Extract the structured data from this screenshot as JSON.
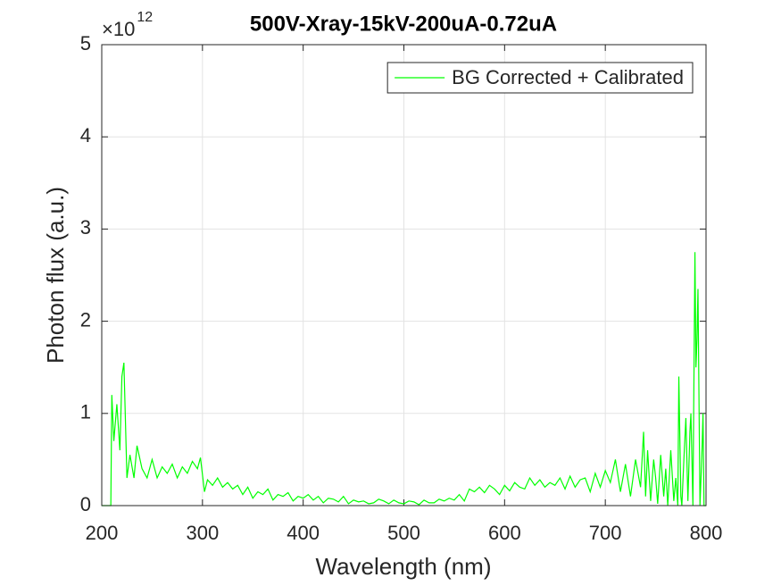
{
  "chart_data": {
    "type": "line",
    "title": "500V-Xray-15kV-200uA-0.72uA",
    "x_label": "Wavelength (nm)",
    "y_label": "Photon flux (a.u.)",
    "y_multiplier": {
      "base": "×10",
      "exponent": "12"
    },
    "xlim": [
      200,
      800
    ],
    "xticks": [
      200,
      300,
      400,
      500,
      600,
      700,
      800
    ],
    "ylim": [
      0,
      5
    ],
    "yticks": [
      0,
      1,
      2,
      3,
      4,
      5
    ],
    "grid": true,
    "legend": "upper right",
    "x": [
      200,
      209,
      210,
      212,
      215,
      218,
      220,
      222,
      225,
      228,
      232,
      235,
      240,
      245,
      250,
      255,
      260,
      265,
      270,
      275,
      280,
      285,
      290,
      295,
      298,
      302,
      305,
      310,
      315,
      320,
      325,
      330,
      335,
      340,
      345,
      350,
      355,
      360,
      365,
      370,
      375,
      380,
      385,
      390,
      395,
      400,
      405,
      410,
      415,
      420,
      425,
      430,
      435,
      440,
      445,
      450,
      455,
      460,
      465,
      470,
      475,
      480,
      485,
      490,
      495,
      500,
      505,
      510,
      515,
      520,
      525,
      530,
      535,
      540,
      545,
      550,
      555,
      560,
      565,
      570,
      575,
      580,
      585,
      590,
      595,
      600,
      605,
      610,
      615,
      620,
      625,
      630,
      635,
      640,
      645,
      650,
      655,
      660,
      665,
      670,
      675,
      680,
      685,
      690,
      695,
      700,
      705,
      710,
      715,
      720,
      725,
      730,
      735,
      738,
      740,
      742,
      745,
      748,
      750,
      752,
      755,
      758,
      760,
      762,
      765,
      768,
      770,
      772,
      773,
      775,
      776,
      778,
      780,
      782,
      784,
      785,
      787,
      789,
      790,
      791,
      792,
      794,
      796,
      797,
      798,
      800
    ],
    "series": [
      {
        "name": "BG Corrected + Calibrated",
        "color": "#00ff00",
        "values": [
          0,
          0,
          1.2,
          0.7,
          1.1,
          0.6,
          1.4,
          1.55,
          0.3,
          0.55,
          0.3,
          0.65,
          0.4,
          0.3,
          0.5,
          0.3,
          0.42,
          0.35,
          0.45,
          0.3,
          0.42,
          0.35,
          0.48,
          0.4,
          0.52,
          0.15,
          0.28,
          0.22,
          0.3,
          0.2,
          0.25,
          0.18,
          0.22,
          0.12,
          0.2,
          0.08,
          0.15,
          0.12,
          0.18,
          0.06,
          0.12,
          0.1,
          0.14,
          0.05,
          0.1,
          0.08,
          0.12,
          0.06,
          0.1,
          0.03,
          0.08,
          0.07,
          0.04,
          0.1,
          0.02,
          0.06,
          0.04,
          0.05,
          0.02,
          0.03,
          0.07,
          0.05,
          0.02,
          0.06,
          0.03,
          0.02,
          0.05,
          0.04,
          0.01,
          0.06,
          0.03,
          0.03,
          0.07,
          0.05,
          0.08,
          0.06,
          0.12,
          0.05,
          0.18,
          0.15,
          0.2,
          0.14,
          0.22,
          0.18,
          0.12,
          0.22,
          0.16,
          0.25,
          0.2,
          0.18,
          0.3,
          0.22,
          0.28,
          0.2,
          0.25,
          0.22,
          0.3,
          0.18,
          0.32,
          0.2,
          0.28,
          0.3,
          0.15,
          0.35,
          0.2,
          0.38,
          0.25,
          0.5,
          0.15,
          0.45,
          0.1,
          0.5,
          0.2,
          0.8,
          0.1,
          0.6,
          0.05,
          0.5,
          0.3,
          0.02,
          0.55,
          0.1,
          0.4,
          0.0,
          0.6,
          0.05,
          0.3,
          0.0,
          1.4,
          0.1,
          0.0,
          0.5,
          0.95,
          0.05,
          0.8,
          1.0,
          0.0,
          2.75,
          1.5,
          1.8,
          2.35,
          0.0,
          0.6,
          1.0,
          0.0,
          0
        ]
      }
    ]
  }
}
